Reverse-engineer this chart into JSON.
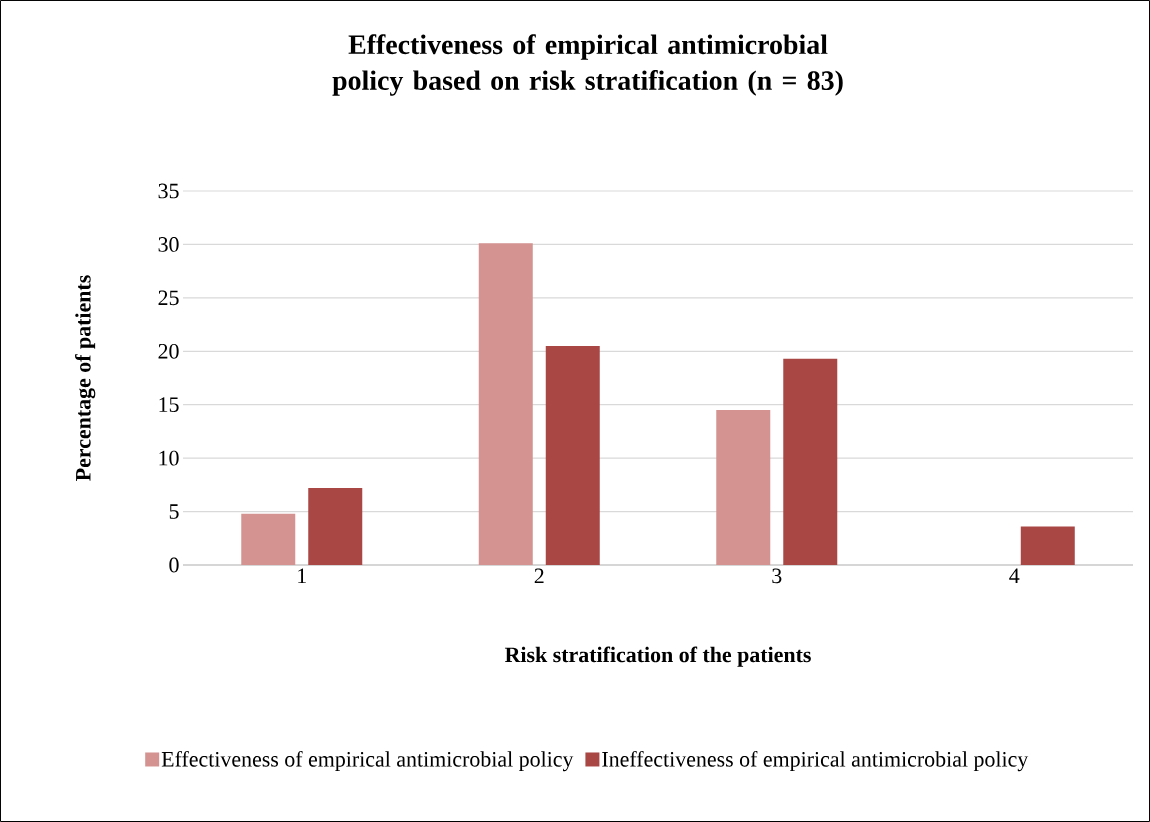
{
  "chart_data": {
    "type": "bar",
    "title": "Effectiveness of empirical antimicrobial policy based on risk stratification (n = 83)",
    "xlabel": "Risk stratification of the patients",
    "ylabel": "Percentage of patients",
    "categories": [
      "1",
      "2",
      "3",
      "4"
    ],
    "series": [
      {
        "name": "Effectiveness of empirical antimicrobial policy",
        "color": "#d49391",
        "values": [
          4.8,
          30.1,
          14.5,
          0
        ]
      },
      {
        "name": "Ineffectiveness of empirical antimicrobial policy",
        "color": "#a94745",
        "values": [
          7.2,
          20.5,
          19.3,
          3.6
        ]
      }
    ],
    "ylim": [
      0,
      35
    ],
    "yticks": [
      0,
      5,
      10,
      15,
      20,
      25,
      30,
      35
    ],
    "grid": "y",
    "legend": "bottom"
  }
}
